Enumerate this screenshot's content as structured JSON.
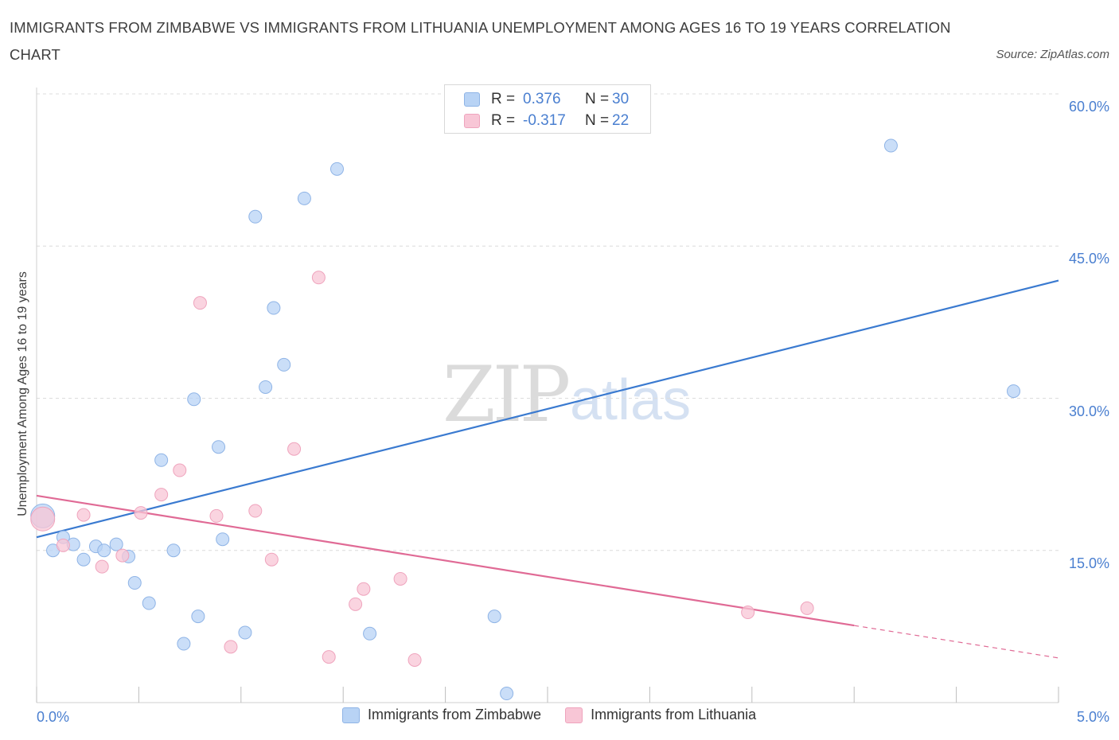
{
  "title": "IMMIGRANTS FROM ZIMBABWE VS IMMIGRANTS FROM LITHUANIA UNEMPLOYMENT AMONG AGES 16 TO 19 YEARS CORRELATION CHART",
  "source": "Source: ZipAtlas.com",
  "watermark": {
    "zip": "ZIP",
    "atlas": "atlas"
  },
  "legend": {
    "rows": [
      {
        "r_label": "R =",
        "r_value": "0.376",
        "n_label": "N =",
        "n_value": "30"
      },
      {
        "r_label": "R =",
        "r_value": "-0.317",
        "n_label": "N =",
        "n_value": "22"
      }
    ]
  },
  "colors": {
    "zimbabwe_fill": "#b8d3f5",
    "zimbabwe_stroke": "#8fb4e6",
    "zimbabwe_line": "#3a7ad0",
    "lithuania_fill": "#f8c6d6",
    "lithuania_stroke": "#efa4bd",
    "lithuania_line": "#e06a95",
    "grid": "#dcdcdc",
    "tick_text": "#4a7fd0"
  },
  "chart_data": {
    "type": "scatter",
    "xlabel": "",
    "ylabel": "Unemployment Among Ages 16 to 19 years",
    "xlim": [
      0.0,
      5.0
    ],
    "ylim": [
      0.0,
      60.0
    ],
    "x_tick_labels": [
      "0.0%",
      "5.0%"
    ],
    "y_tick_labels": [
      "15.0%",
      "30.0%",
      "45.0%",
      "60.0%"
    ],
    "y_ticks": [
      15,
      30,
      45,
      60
    ],
    "grid": true,
    "legend_position": "bottom-center",
    "series": [
      {
        "name": "Immigrants from Zimbabwe",
        "points": [
          [
            0.03,
            18.4
          ],
          [
            0.08,
            15.0
          ],
          [
            0.13,
            16.3
          ],
          [
            0.18,
            15.6
          ],
          [
            0.23,
            14.1
          ],
          [
            0.29,
            15.4
          ],
          [
            0.33,
            15.0
          ],
          [
            0.39,
            15.6
          ],
          [
            0.45,
            14.4
          ],
          [
            0.48,
            11.8
          ],
          [
            0.55,
            9.8
          ],
          [
            0.61,
            23.9
          ],
          [
            0.67,
            15.0
          ],
          [
            0.72,
            5.8
          ],
          [
            0.77,
            29.9
          ],
          [
            0.79,
            8.5
          ],
          [
            0.89,
            25.2
          ],
          [
            0.91,
            16.1
          ],
          [
            1.02,
            6.9
          ],
          [
            1.07,
            47.9
          ],
          [
            1.12,
            31.1
          ],
          [
            1.16,
            38.9
          ],
          [
            1.21,
            33.3
          ],
          [
            1.31,
            49.7
          ],
          [
            1.47,
            52.6
          ],
          [
            1.63,
            6.8
          ],
          [
            2.24,
            8.5
          ],
          [
            2.3,
            0.9
          ],
          [
            4.18,
            54.9
          ],
          [
            4.78,
            30.7
          ]
        ],
        "trend": {
          "x": [
            0.0,
            5.0
          ],
          "y": [
            16.3,
            41.6
          ],
          "style": "solid"
        }
      },
      {
        "name": "Immigrants from Lithuania",
        "points": [
          [
            0.03,
            18.1
          ],
          [
            0.13,
            15.5
          ],
          [
            0.23,
            18.5
          ],
          [
            0.32,
            13.4
          ],
          [
            0.42,
            14.5
          ],
          [
            0.51,
            18.7
          ],
          [
            0.61,
            20.5
          ],
          [
            0.7,
            22.9
          ],
          [
            0.8,
            39.4
          ],
          [
            0.88,
            18.4
          ],
          [
            0.95,
            5.5
          ],
          [
            1.07,
            18.9
          ],
          [
            1.15,
            14.1
          ],
          [
            1.26,
            25.0
          ],
          [
            1.38,
            41.9
          ],
          [
            1.43,
            4.5
          ],
          [
            1.56,
            9.7
          ],
          [
            1.6,
            11.2
          ],
          [
            1.78,
            12.2
          ],
          [
            1.85,
            4.2
          ],
          [
            3.48,
            8.9
          ],
          [
            3.77,
            9.3
          ]
        ],
        "trend": {
          "x": [
            0.0,
            4.0
          ],
          "y": [
            20.4,
            7.6
          ],
          "style": "solid"
        },
        "trend_extension": {
          "x": [
            4.0,
            5.0
          ],
          "y": [
            7.6,
            4.4
          ],
          "style": "dashed"
        }
      }
    ]
  }
}
